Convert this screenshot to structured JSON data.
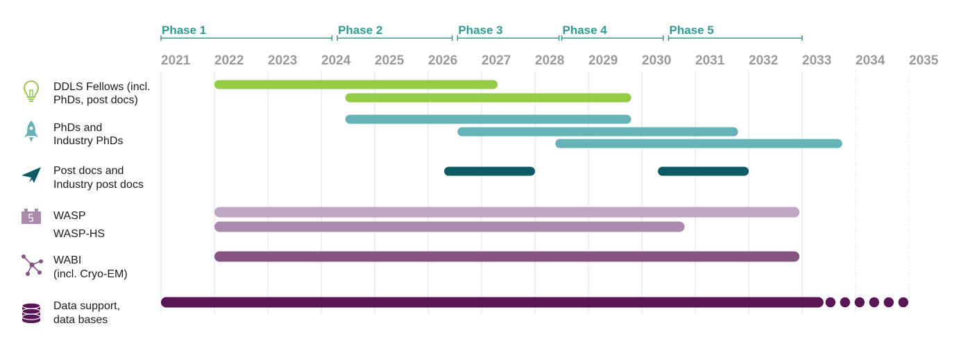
{
  "colors": {
    "phase": "#2a9d93",
    "grid": "#dcdcdc",
    "year_text": "#9a9a9a",
    "lime": "#93cc44",
    "teal_light": "#66b3b7",
    "teal_dark": "#0b5c63",
    "mauve_light": "#bfa6c4",
    "mauve": "#a98aad",
    "purple": "#855480",
    "plum": "#5a1556"
  },
  "chart_data": {
    "type": "gantt",
    "x_range": [
      2021,
      2035
    ],
    "years": [
      "2021",
      "2022",
      "2023",
      "2024",
      "2025",
      "2026",
      "2027",
      "2028",
      "2029",
      "2030",
      "2031",
      "2032",
      "2033",
      "2034",
      "2035"
    ],
    "phases": [
      {
        "label": "Phase 1",
        "start": 2021.0,
        "end": 2024.2
      },
      {
        "label": "Phase 2",
        "start": 2024.3,
        "end": 2026.45
      },
      {
        "label": "Phase 3",
        "start": 2026.55,
        "end": 2028.45
      },
      {
        "label": "Phase 4",
        "start": 2028.5,
        "end": 2030.4
      },
      {
        "label": "Phase 5",
        "start": 2030.5,
        "end": 2033.0
      }
    ],
    "rows": [
      {
        "label_lines": [
          "DDLS Fellows (incl.",
          "PhDs, post docs)"
        ],
        "icon": "lightbulb-icon",
        "icon_color": "#93cc44",
        "bars": [
          {
            "start": 2022.0,
            "end": 2027.3,
            "color": "#93cc44"
          },
          {
            "start": 2024.45,
            "end": 2029.8,
            "color": "#93cc44"
          }
        ]
      },
      {
        "label_lines": [
          "PhDs and",
          "Industry PhDs"
        ],
        "icon": "rocket-icon",
        "icon_color": "#66b3b7",
        "bars": [
          {
            "start": 2024.45,
            "end": 2029.8,
            "color": "#66b3b7"
          },
          {
            "start": 2026.55,
            "end": 2031.8,
            "color": "#66b3b7"
          },
          {
            "start": 2028.38,
            "end": 2033.75,
            "color": "#66b3b7"
          }
        ]
      },
      {
        "label_lines": [
          "Post docs and",
          "Industry post docs"
        ],
        "icon": "paper-plane-icon",
        "icon_color": "#0b5c63",
        "bars": [
          {
            "start": 2026.3,
            "end": 2028.0,
            "color": "#0b5c63"
          },
          {
            "start": 2030.3,
            "end": 2032.0,
            "color": "#0b5c63"
          }
        ]
      },
      {
        "label_lines": [
          "WASP",
          "WASP-HS"
        ],
        "icon": "puzzle-icon",
        "icon_color": "#a98aad",
        "bars": [
          {
            "start": 2022.0,
            "end": 2032.95,
            "color": "#bfa6c4"
          },
          {
            "start": 2022.0,
            "end": 2030.8,
            "color": "#a98aad"
          }
        ]
      },
      {
        "label_lines": [
          "WABI",
          "(incl. Cryo-EM)"
        ],
        "icon": "network-icon",
        "icon_color": "#855480",
        "bars": [
          {
            "start": 2022.0,
            "end": 2032.95,
            "color": "#855480"
          }
        ]
      },
      {
        "label_lines": [
          "Data support,",
          "data bases"
        ],
        "icon": "database-icon",
        "icon_color": "#5a1556",
        "bars": [
          {
            "start": 2021.0,
            "end": 2033.4,
            "color": "#5a1556",
            "continues": true,
            "dots": 6
          }
        ]
      }
    ]
  }
}
